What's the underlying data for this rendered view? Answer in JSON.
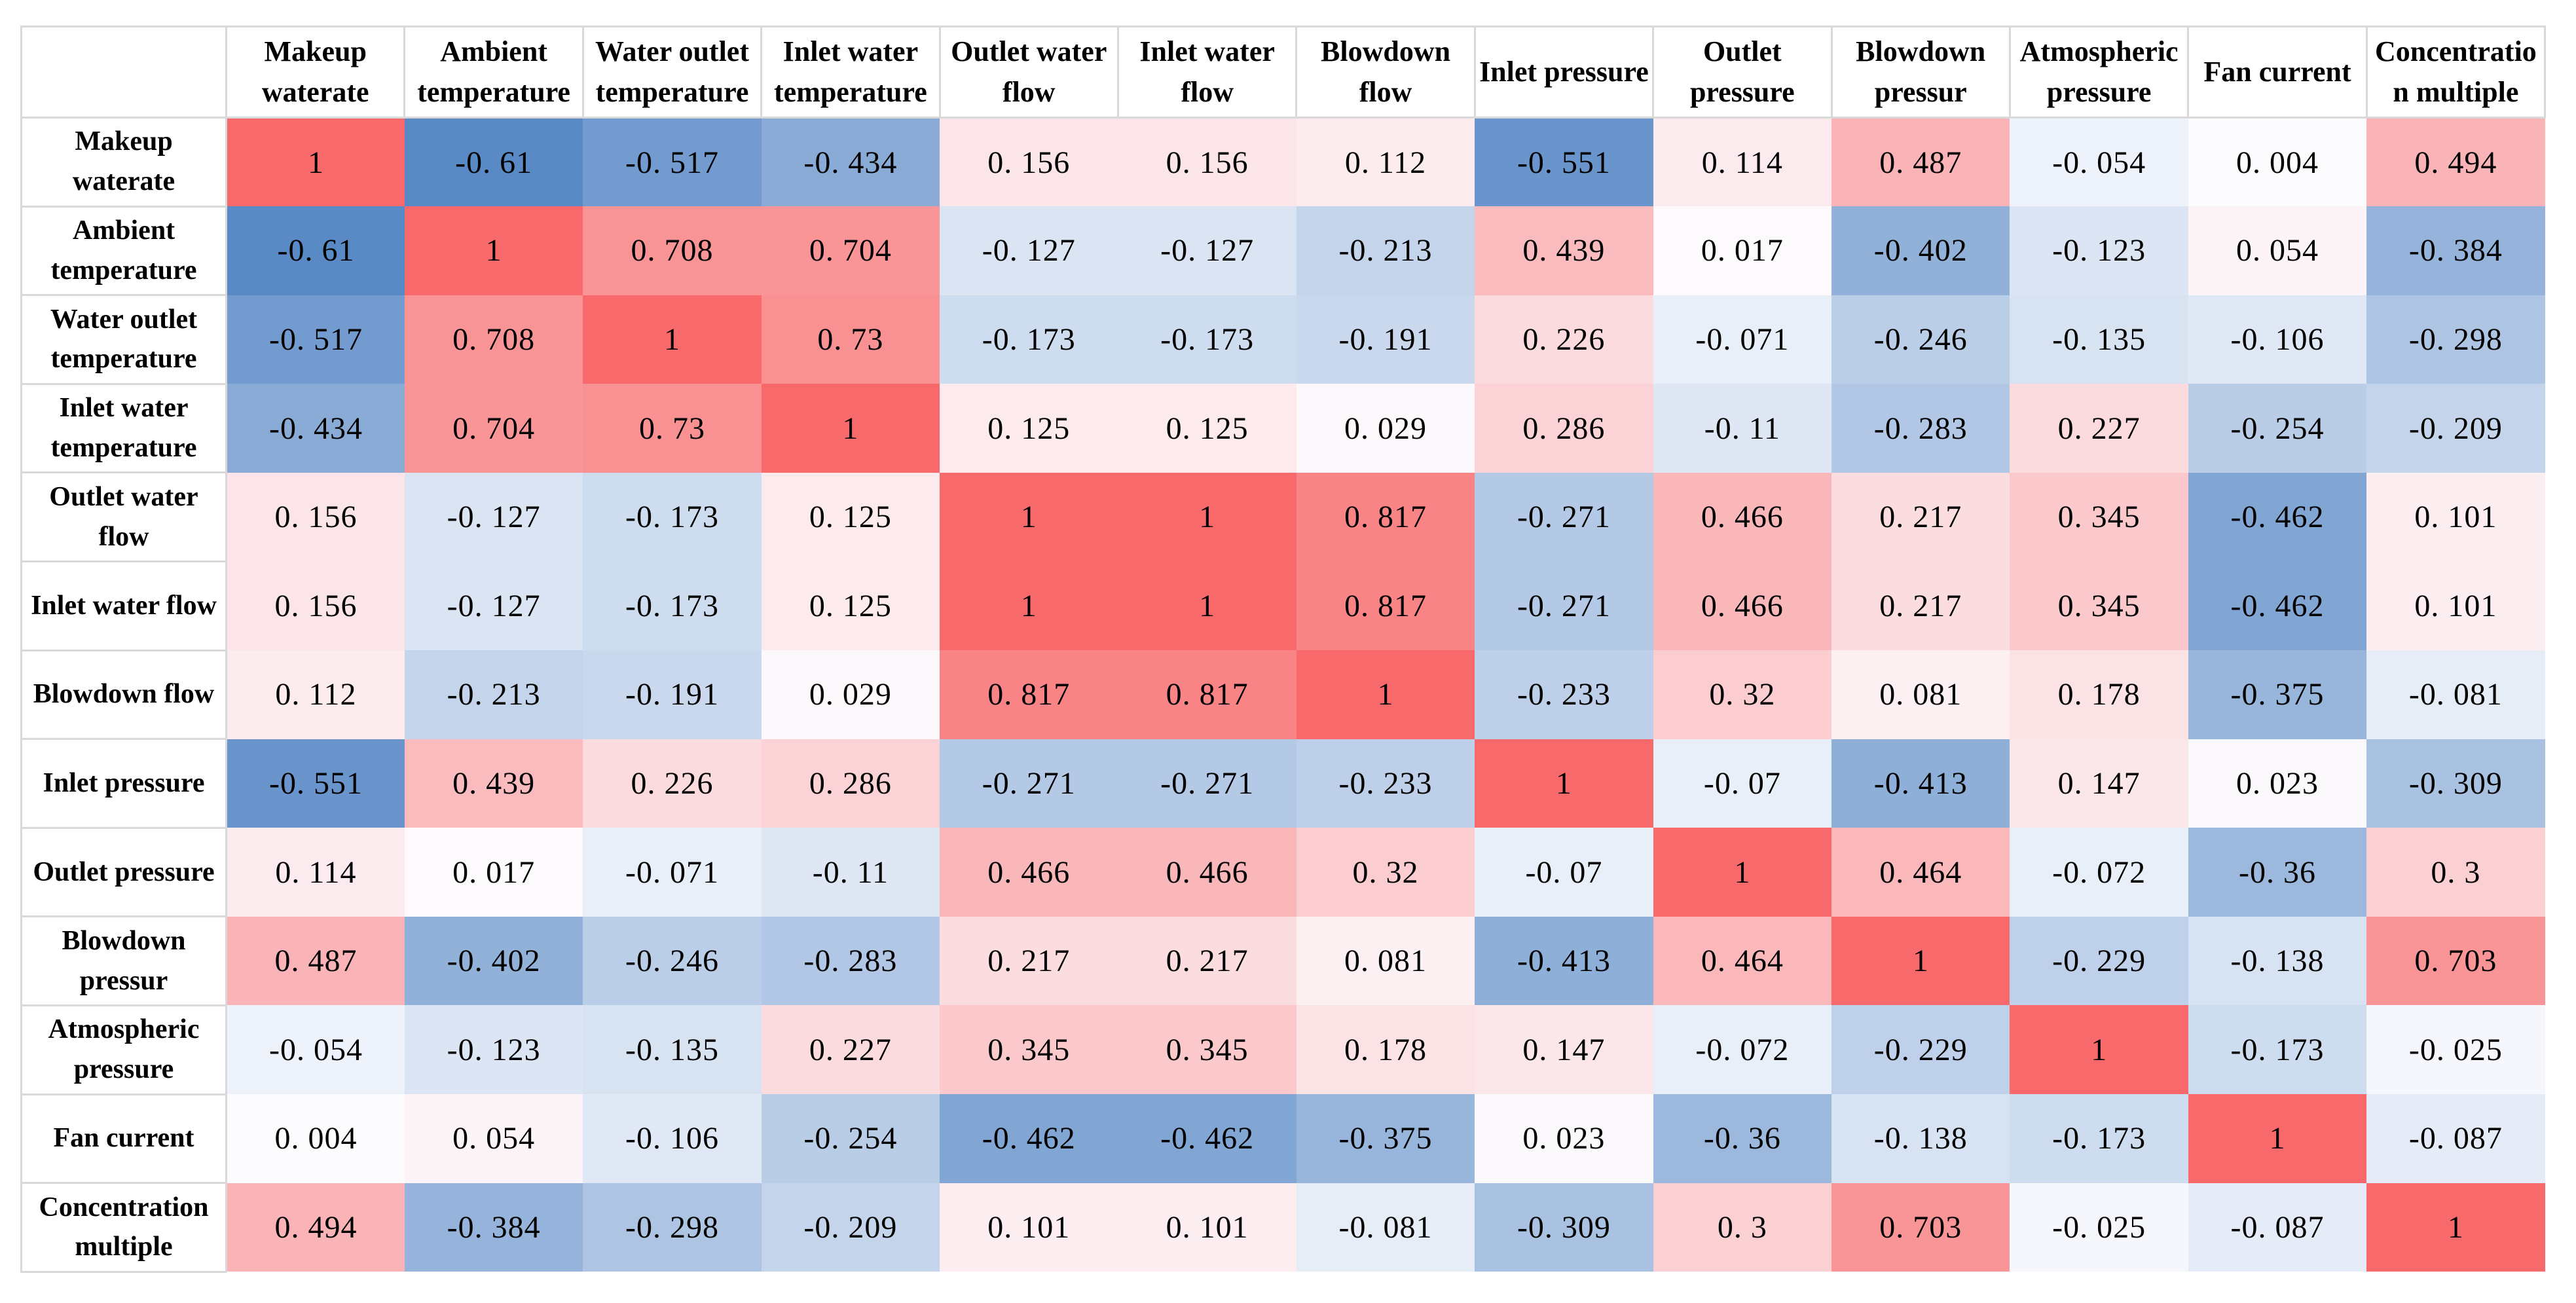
{
  "table": {
    "corner_label": "",
    "description": "Correlation coefficient matrix with red-white-blue conditional formatting"
  },
  "chart_data": {
    "type": "heatmap",
    "title": "",
    "categories": [
      "Makeup waterate",
      "Ambient temperature",
      "Water outlet temperature",
      "Inlet water temperature",
      "Outlet water flow",
      "Inlet water flow",
      "Blowdown flow",
      "Inlet pressure",
      "Outlet pressure",
      "Blowdown pressur",
      "Atmospheric pressure",
      "Fan current",
      "Concentration multiple"
    ],
    "matrix": [
      [
        1,
        -0.61,
        -0.517,
        -0.434,
        0.156,
        0.156,
        0.112,
        -0.551,
        0.114,
        0.487,
        -0.054,
        0.004,
        0.494
      ],
      [
        -0.61,
        1,
        0.708,
        0.704,
        -0.127,
        -0.127,
        -0.213,
        0.439,
        0.017,
        -0.402,
        -0.123,
        0.054,
        -0.384
      ],
      [
        -0.517,
        0.708,
        1,
        0.73,
        -0.173,
        -0.173,
        -0.191,
        0.226,
        -0.071,
        -0.246,
        -0.135,
        -0.106,
        -0.298
      ],
      [
        -0.434,
        0.704,
        0.73,
        1,
        0.125,
        0.125,
        0.029,
        0.286,
        -0.11,
        -0.283,
        0.227,
        -0.254,
        -0.209
      ],
      [
        0.156,
        -0.127,
        -0.173,
        0.125,
        1,
        1,
        0.817,
        -0.271,
        0.466,
        0.217,
        0.345,
        -0.462,
        0.101
      ],
      [
        0.156,
        -0.127,
        -0.173,
        0.125,
        1,
        1,
        0.817,
        -0.271,
        0.466,
        0.217,
        0.345,
        -0.462,
        0.101
      ],
      [
        0.112,
        -0.213,
        -0.191,
        0.029,
        0.817,
        0.817,
        1,
        -0.233,
        0.32,
        0.081,
        0.178,
        -0.375,
        -0.081
      ],
      [
        -0.551,
        0.439,
        0.226,
        0.286,
        -0.271,
        -0.271,
        -0.233,
        1,
        -0.07,
        -0.413,
        0.147,
        0.023,
        -0.309
      ],
      [
        0.114,
        0.017,
        -0.071,
        -0.11,
        0.466,
        0.466,
        0.32,
        -0.07,
        1,
        0.464,
        -0.072,
        -0.36,
        0.3
      ],
      [
        0.487,
        -0.402,
        -0.246,
        -0.283,
        0.217,
        0.217,
        0.081,
        -0.413,
        0.464,
        1,
        -0.229,
        -0.138,
        0.703
      ],
      [
        -0.054,
        -0.123,
        -0.135,
        0.227,
        0.345,
        0.345,
        0.178,
        0.147,
        -0.072,
        -0.229,
        1,
        -0.173,
        -0.025
      ],
      [
        0.004,
        0.054,
        -0.106,
        -0.254,
        -0.462,
        -0.462,
        -0.375,
        0.023,
        -0.36,
        -0.138,
        -0.173,
        1,
        -0.087
      ],
      [
        0.494,
        -0.384,
        -0.298,
        -0.209,
        0.101,
        0.101,
        -0.081,
        -0.309,
        0.3,
        0.703,
        -0.025,
        -0.087,
        1
      ]
    ],
    "colormap": {
      "max_color": "#F8696B",
      "mid_color": "#FCFCFF",
      "min_color": "#5A8AC6",
      "max_value": 1,
      "mid_value": 0,
      "min_value": -0.61
    },
    "grid_color": "#D9D9D9",
    "text_color": "#000000",
    "legend": "none",
    "value_display": "decimal point rendered with trailing space, e.g. -0. 61"
  }
}
